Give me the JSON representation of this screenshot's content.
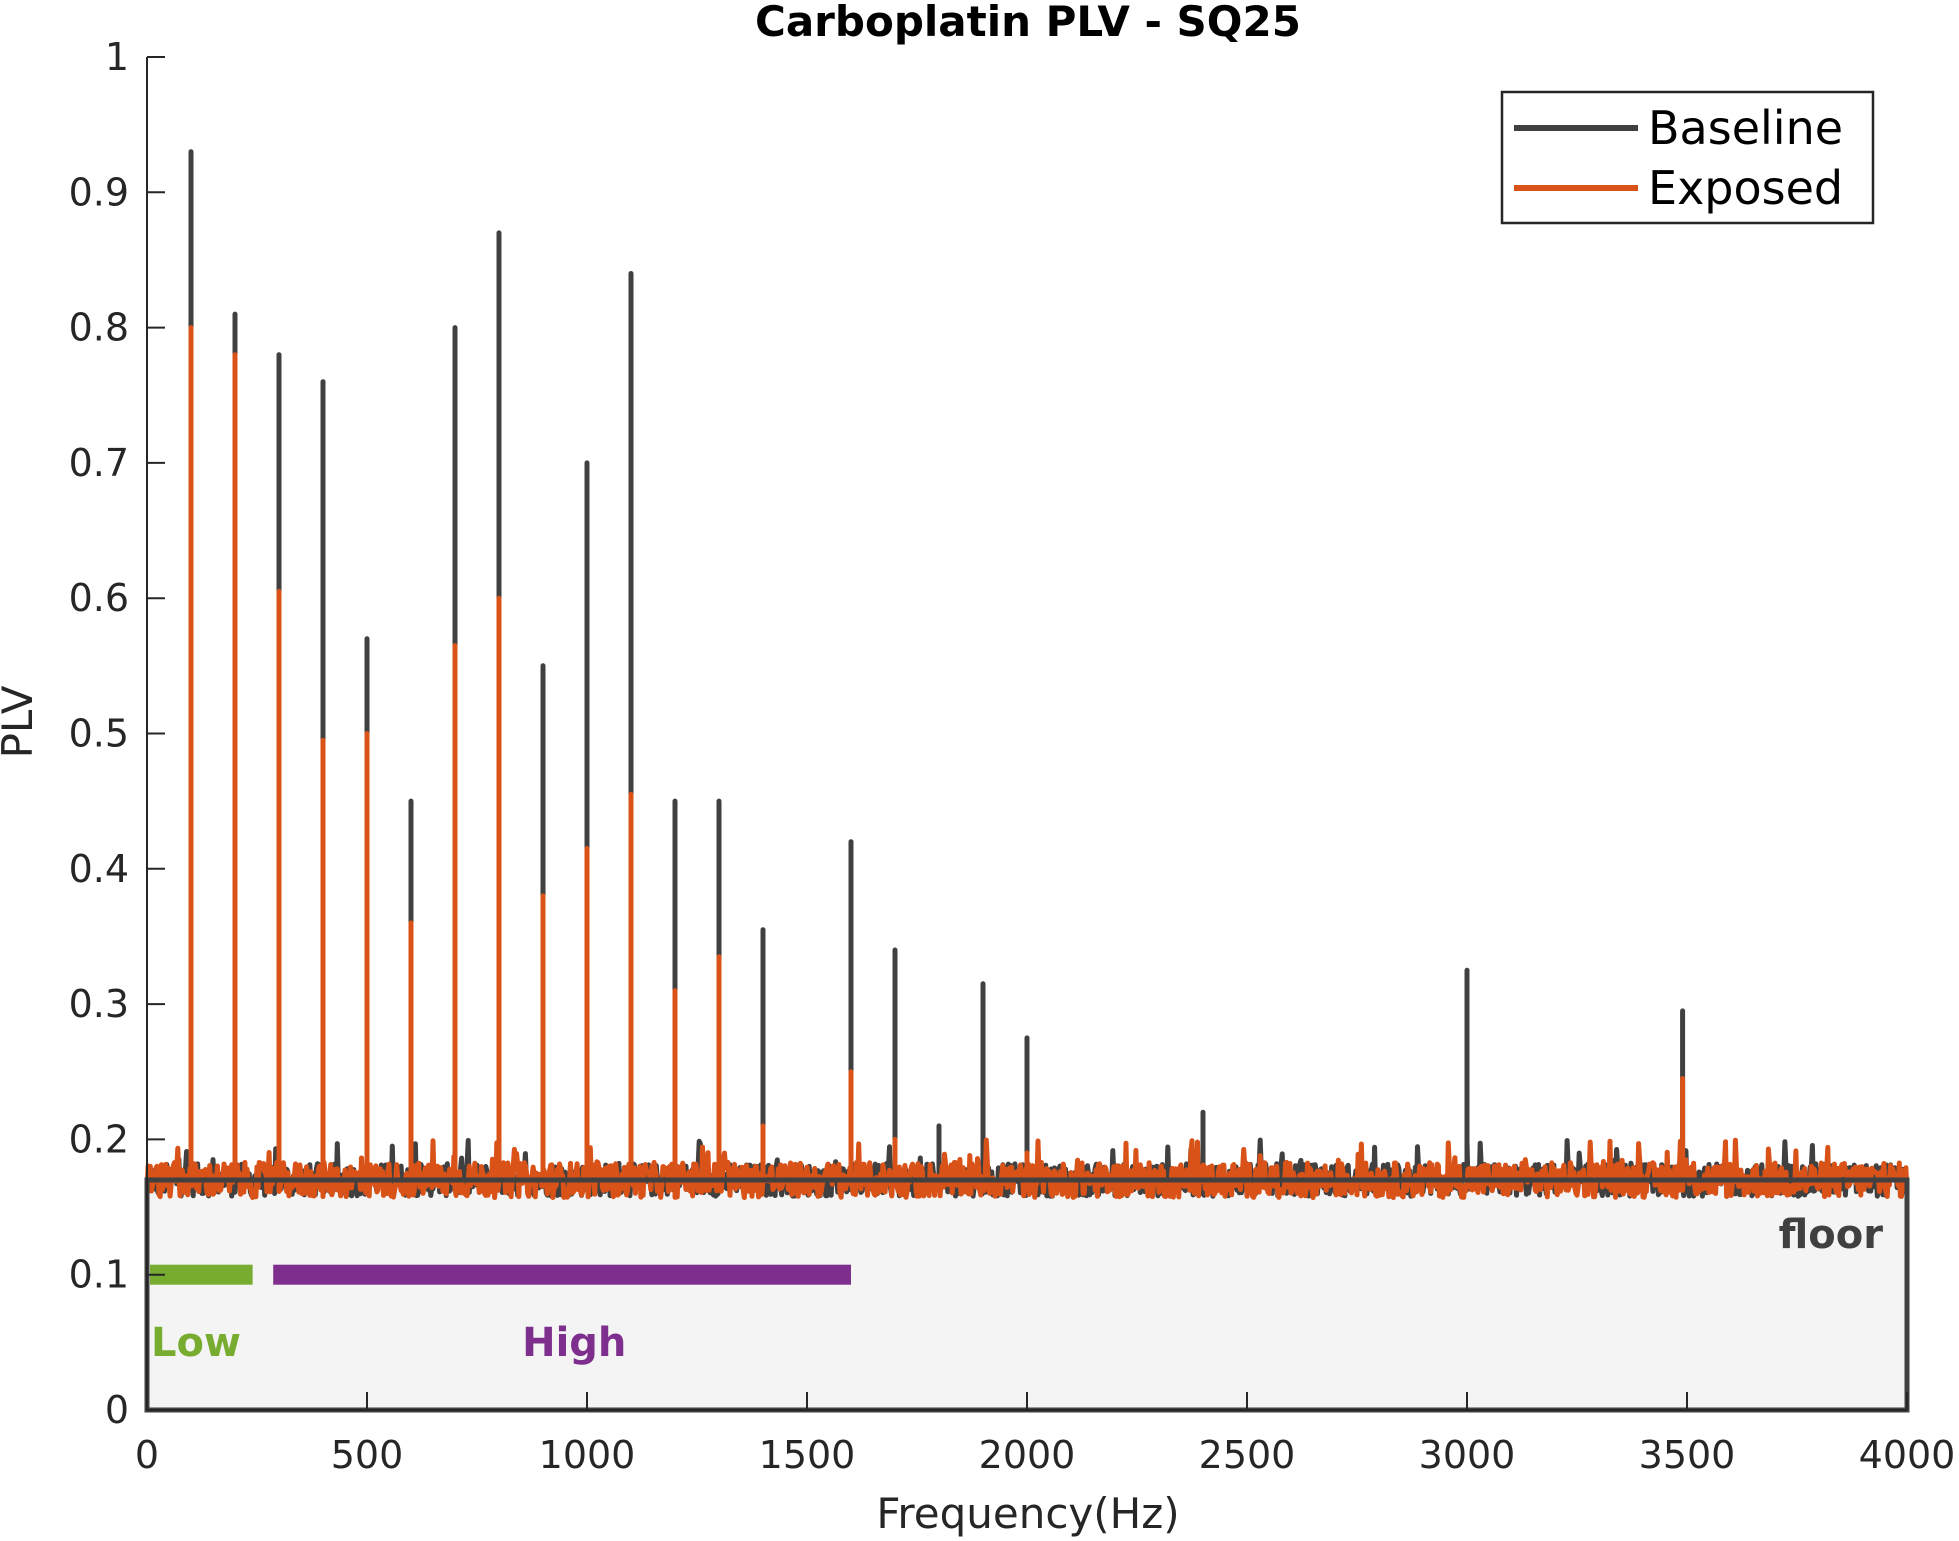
{
  "chart_data": {
    "type": "line",
    "title": "Carboplatin PLV - SQ25",
    "xlabel": "Frequency(Hz)",
    "ylabel": "PLV",
    "xlim": [
      0,
      4000
    ],
    "ylim": [
      0,
      1
    ],
    "xticks": [
      0,
      500,
      1000,
      1500,
      2000,
      2500,
      3000,
      3500,
      4000
    ],
    "xtick_labels": [
      "0",
      "500",
      "1000",
      "1500",
      "2000",
      "2500",
      "3000",
      "3500",
      "4000"
    ],
    "yticks": [
      0,
      0.1,
      0.2,
      0.3,
      0.4,
      0.5,
      0.6,
      0.7,
      0.8,
      0.9,
      1
    ],
    "ytick_labels": [
      "0",
      "0.1",
      "0.2",
      "0.3",
      "0.4",
      "0.5",
      "0.6",
      "0.7",
      "0.8",
      "0.9",
      "1"
    ],
    "grid": false,
    "legend_position": "top-right",
    "noise_floor_level": 0.17,
    "series": [
      {
        "name": "Baseline",
        "color": "#404040",
        "peaks": [
          {
            "x": 100,
            "y": 0.93
          },
          {
            "x": 200,
            "y": 0.81
          },
          {
            "x": 300,
            "y": 0.78
          },
          {
            "x": 400,
            "y": 0.76
          },
          {
            "x": 500,
            "y": 0.57
          },
          {
            "x": 600,
            "y": 0.45
          },
          {
            "x": 700,
            "y": 0.8
          },
          {
            "x": 800,
            "y": 0.87
          },
          {
            "x": 900,
            "y": 0.55
          },
          {
            "x": 1000,
            "y": 0.7
          },
          {
            "x": 1100,
            "y": 0.84
          },
          {
            "x": 1200,
            "y": 0.45
          },
          {
            "x": 1300,
            "y": 0.45
          },
          {
            "x": 1400,
            "y": 0.355
          },
          {
            "x": 1600,
            "y": 0.42
          },
          {
            "x": 1700,
            "y": 0.34
          },
          {
            "x": 1800,
            "y": 0.21
          },
          {
            "x": 1900,
            "y": 0.315
          },
          {
            "x": 2000,
            "y": 0.275
          },
          {
            "x": 2400,
            "y": 0.22
          },
          {
            "x": 3000,
            "y": 0.325
          },
          {
            "x": 3490,
            "y": 0.295
          }
        ]
      },
      {
        "name": "Exposed",
        "color": "#D95319",
        "peaks": [
          {
            "x": 100,
            "y": 0.8
          },
          {
            "x": 200,
            "y": 0.78
          },
          {
            "x": 300,
            "y": 0.605
          },
          {
            "x": 400,
            "y": 0.495
          },
          {
            "x": 500,
            "y": 0.5
          },
          {
            "x": 600,
            "y": 0.36
          },
          {
            "x": 700,
            "y": 0.565
          },
          {
            "x": 800,
            "y": 0.6
          },
          {
            "x": 900,
            "y": 0.38
          },
          {
            "x": 1000,
            "y": 0.415
          },
          {
            "x": 1100,
            "y": 0.455
          },
          {
            "x": 1200,
            "y": 0.31
          },
          {
            "x": 1300,
            "y": 0.335
          },
          {
            "x": 1400,
            "y": 0.21
          },
          {
            "x": 1600,
            "y": 0.25
          },
          {
            "x": 1700,
            "y": 0.2
          },
          {
            "x": 2000,
            "y": 0.19
          },
          {
            "x": 3490,
            "y": 0.245
          }
        ]
      }
    ],
    "annotations": [
      {
        "label": "floor",
        "color": "#404040"
      },
      {
        "label": "Low",
        "color": "#77AC30",
        "x_range": [
          0,
          240
        ],
        "y": 0.1
      },
      {
        "label": "High",
        "color": "#7E2F8E",
        "x_range": [
          280,
          1600
        ],
        "y": 0.1
      }
    ]
  }
}
